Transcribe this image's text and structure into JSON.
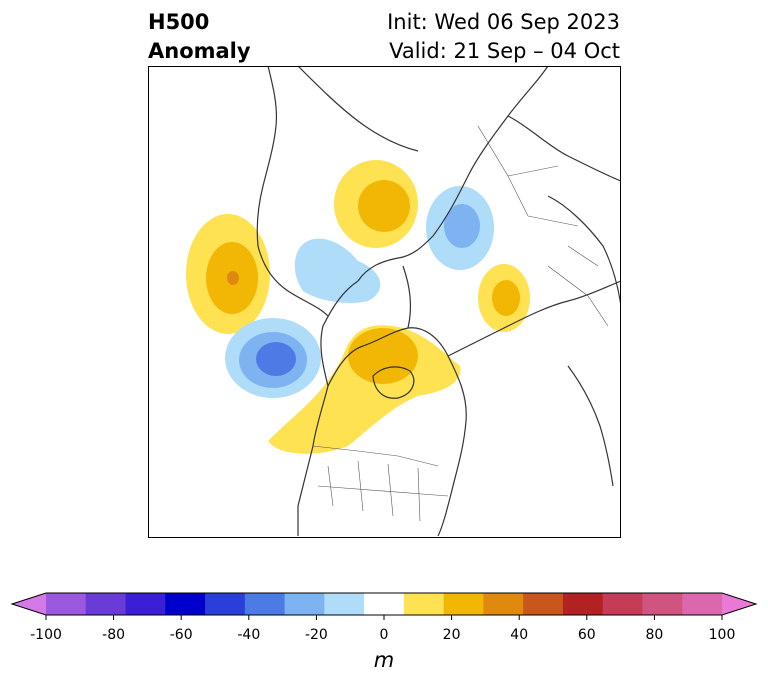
{
  "title": {
    "line1": "H500",
    "line2": "Anomaly"
  },
  "subtitle": {
    "init": "Init: Wed 06 Sep 2023",
    "valid": "Valid: 21 Sep – 04 Oct"
  },
  "colorbar": {
    "units": "m",
    "ticks": [
      "-100",
      "-80",
      "-60",
      "-40",
      "-20",
      "0",
      "20",
      "40",
      "60",
      "80",
      "100"
    ],
    "colors": [
      "#d47ae8",
      "#9b59e0",
      "#6a3bd6",
      "#3a1fd4",
      "#0000cc",
      "#2a3fd9",
      "#4d7be6",
      "#7eb3f2",
      "#aedcf9",
      "#ffffff",
      "#ffe252",
      "#f2b705",
      "#df8a0f",
      "#c9561c",
      "#b22222",
      "#c43c55",
      "#cf5580",
      "#db67ad",
      "#e87ad6"
    ]
  },
  "map_fields": {
    "positive_color_1": "#ffe252",
    "positive_color_2": "#f2b705",
    "positive_color_3": "#df8a0f",
    "negative_color_1": "#aedcf9",
    "negative_color_2": "#7eb3f2",
    "negative_color_3": "#4d7be6",
    "coast_color": "#333333"
  }
}
